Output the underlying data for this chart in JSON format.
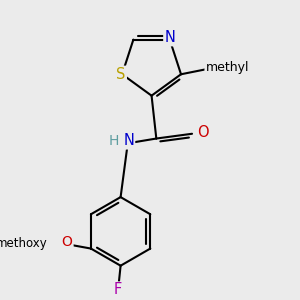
{
  "bg_color": "#ebebeb",
  "bond_color": "#000000",
  "bond_lw": 1.5,
  "atom_colors": {
    "S": "#b8a000",
    "N": "#0000cc",
    "O": "#cc0000",
    "F": "#aa00aa",
    "H_teal": "#5f9ea0",
    "C": "#000000"
  },
  "fs": 10.5,
  "methyl_label": "methyl",
  "methoxy_label": "methoxy",
  "S_label": "S",
  "N_label": "N",
  "O_label": "O",
  "F_label": "F",
  "H_label": "H",
  "N_amide_label": "N"
}
